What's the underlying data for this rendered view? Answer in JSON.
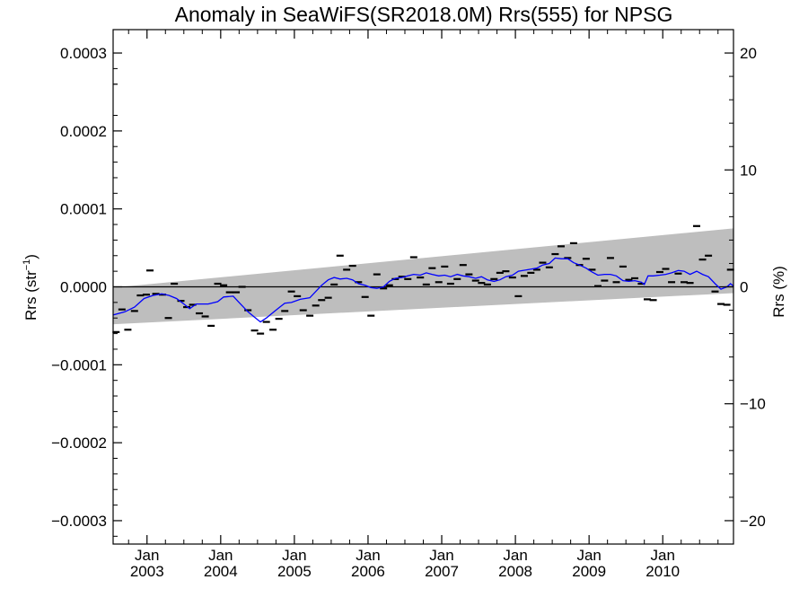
{
  "chart_data": {
    "type": "line",
    "title": "Anomaly in SeaWiFS(SR2018.0M) Rrs(555) for NPSG",
    "ylabel_main": "Rrs (str",
    "ylabel_sup": "−1",
    "ylabel_close": ")",
    "ylabel_right": "Rrs (%)",
    "x_range": [
      2002.54,
      2010.96
    ],
    "y_range": [
      -0.00033,
      0.00033
    ],
    "y2_range": [
      -22,
      22
    ],
    "x_ticks": [
      {
        "x": 2003.0,
        "month": "Jan",
        "year": "2003"
      },
      {
        "x": 2004.0,
        "month": "Jan",
        "year": "2004"
      },
      {
        "x": 2005.0,
        "month": "Jan",
        "year": "2005"
      },
      {
        "x": 2006.0,
        "month": "Jan",
        "year": "2006"
      },
      {
        "x": 2007.0,
        "month": "Jan",
        "year": "2007"
      },
      {
        "x": 2008.0,
        "month": "Jan",
        "year": "2008"
      },
      {
        "x": 2009.0,
        "month": "Jan",
        "year": "2009"
      },
      {
        "x": 2010.0,
        "month": "Jan",
        "year": "2010"
      }
    ],
    "y_ticks": [
      {
        "v": 0.0003,
        "label": "0.0003"
      },
      {
        "v": 0.0002,
        "label": "0.0002"
      },
      {
        "v": 0.0001,
        "label": "0.0001"
      },
      {
        "v": 0.0,
        "label": "0.0000"
      },
      {
        "v": -0.0001,
        "label": "−0.0001"
      },
      {
        "v": -0.0002,
        "label": "−0.0002"
      },
      {
        "v": -0.0003,
        "label": "−0.0003"
      }
    ],
    "y2_ticks": [
      {
        "v": 20,
        "label": "20"
      },
      {
        "v": 10,
        "label": "10"
      },
      {
        "v": 0,
        "label": "0"
      },
      {
        "v": -10,
        "label": "−10"
      },
      {
        "v": -20,
        "label": "−20"
      }
    ],
    "band": {
      "x": [
        2002.54,
        2010.96
      ],
      "lower": [
        -4.8e-05,
        -8e-06
      ],
      "upper": [
        -1e-06,
        7.5e-05
      ]
    },
    "monthly_points": [
      [
        2002.58,
        -5.8e-05
      ],
      [
        2002.66,
        -2.9e-05
      ],
      [
        2002.74,
        -5.5e-05
      ],
      [
        2002.83,
        -3.1e-05
      ],
      [
        2002.91,
        -1.1e-05
      ],
      [
        2002.99,
        -1e-05
      ],
      [
        2003.04,
        2.1e-05
      ],
      [
        2003.12,
        -9e-06
      ],
      [
        2003.21,
        -1e-05
      ],
      [
        2003.29,
        -4e-05
      ],
      [
        2003.37,
        4e-06
      ],
      [
        2003.46,
        -1.8e-05
      ],
      [
        2003.54,
        -2.6e-05
      ],
      [
        2003.62,
        -2.3e-05
      ],
      [
        2003.71,
        -3.4e-05
      ],
      [
        2003.79,
        -3.8e-05
      ],
      [
        2003.87,
        -5e-05
      ],
      [
        2003.96,
        4e-06
      ],
      [
        2004.04,
        2e-06
      ],
      [
        2004.12,
        -7e-06
      ],
      [
        2004.21,
        -7e-06
      ],
      [
        2004.29,
        0.0
      ],
      [
        2004.37,
        -3e-05
      ],
      [
        2004.46,
        -5.6e-05
      ],
      [
        2004.54,
        -6e-05
      ],
      [
        2004.62,
        -4.5e-05
      ],
      [
        2004.71,
        -5.5e-05
      ],
      [
        2004.79,
        -4.1e-05
      ],
      [
        2004.87,
        -3.1e-05
      ],
      [
        2004.96,
        -6e-06
      ],
      [
        2005.04,
        -1.2e-05
      ],
      [
        2005.12,
        -3e-05
      ],
      [
        2005.21,
        -3.7e-05
      ],
      [
        2005.29,
        -2.4e-05
      ],
      [
        2005.37,
        -1.7e-05
      ],
      [
        2005.46,
        -1.4e-05
      ],
      [
        2005.54,
        3e-06
      ],
      [
        2005.62,
        4e-05
      ],
      [
        2005.71,
        2.2e-05
      ],
      [
        2005.79,
        2.7e-05
      ],
      [
        2005.87,
        6e-06
      ],
      [
        2005.96,
        -1.3e-05
      ],
      [
        2006.04,
        -3.7e-05
      ],
      [
        2006.12,
        1.6e-05
      ],
      [
        2006.21,
        -2e-06
      ],
      [
        2006.29,
        2e-06
      ],
      [
        2006.37,
        1e-05
      ],
      [
        2006.46,
        1.3e-05
      ],
      [
        2006.54,
        1e-05
      ],
      [
        2006.62,
        3.8e-05
      ],
      [
        2006.71,
        1.2e-05
      ],
      [
        2006.79,
        3e-06
      ],
      [
        2006.87,
        2.4e-05
      ],
      [
        2006.96,
        6e-06
      ],
      [
        2007.04,
        2.6e-05
      ],
      [
        2007.12,
        4e-06
      ],
      [
        2007.21,
        1e-05
      ],
      [
        2007.29,
        2.8e-05
      ],
      [
        2007.37,
        1.6e-05
      ],
      [
        2007.46,
        8e-06
      ],
      [
        2007.54,
        5e-06
      ],
      [
        2007.62,
        3e-06
      ],
      [
        2007.71,
        1e-05
      ],
      [
        2007.79,
        1.8e-05
      ],
      [
        2007.87,
        2e-05
      ],
      [
        2007.96,
        1.2e-05
      ],
      [
        2008.04,
        -1.2e-05
      ],
      [
        2008.12,
        1.4e-05
      ],
      [
        2008.21,
        1.8e-05
      ],
      [
        2008.29,
        2.2e-05
      ],
      [
        2008.37,
        3.1e-05
      ],
      [
        2008.46,
        2.5e-05
      ],
      [
        2008.54,
        4.2e-05
      ],
      [
        2008.62,
        5.2e-05
      ],
      [
        2008.71,
        3.7e-05
      ],
      [
        2008.79,
        5.6e-05
      ],
      [
        2008.87,
        2.8e-05
      ],
      [
        2008.96,
        3.6e-05
      ],
      [
        2009.04,
        2.2e-05
      ],
      [
        2009.12,
        1e-06
      ],
      [
        2009.21,
        8e-06
      ],
      [
        2009.29,
        3.7e-05
      ],
      [
        2009.37,
        6e-06
      ],
      [
        2009.46,
        2.6e-05
      ],
      [
        2009.54,
        9e-06
      ],
      [
        2009.62,
        1.1e-05
      ],
      [
        2009.71,
        4e-06
      ],
      [
        2009.79,
        -1.6e-05
      ],
      [
        2009.87,
        -1.7e-05
      ],
      [
        2009.96,
        1.9e-05
      ],
      [
        2010.04,
        2.3e-05
      ],
      [
        2010.12,
        6e-06
      ],
      [
        2010.21,
        1.7e-05
      ],
      [
        2010.29,
        6e-06
      ],
      [
        2010.37,
        5e-06
      ],
      [
        2010.46,
        7.8e-05
      ],
      [
        2010.54,
        3.5e-05
      ],
      [
        2010.62,
        4e-05
      ],
      [
        2010.71,
        -6e-06
      ],
      [
        2010.79,
        -2.2e-05
      ],
      [
        2010.87,
        -2.3e-05
      ],
      [
        2010.92,
        2.2e-05
      ]
    ],
    "running_mean": [
      [
        2002.54,
        -3.6e-05
      ],
      [
        2002.7,
        -3.2e-05
      ],
      [
        2002.83,
        -2.6e-05
      ],
      [
        2002.96,
        -1.5e-05
      ],
      [
        2003.08,
        -1.1e-05
      ],
      [
        2003.2,
        -9e-06
      ],
      [
        2003.3,
        -1.1e-05
      ],
      [
        2003.4,
        -1.5e-05
      ],
      [
        2003.5,
        -2.2e-05
      ],
      [
        2003.58,
        -2.8e-05
      ],
      [
        2003.67,
        -2.2e-05
      ],
      [
        2003.83,
        -2.2e-05
      ],
      [
        2003.96,
        -1.9e-05
      ],
      [
        2004.04,
        -1.3e-05
      ],
      [
        2004.17,
        -1.2e-05
      ],
      [
        2004.25,
        -2e-05
      ],
      [
        2004.37,
        -3.2e-05
      ],
      [
        2004.46,
        -3.9e-05
      ],
      [
        2004.54,
        -4.5e-05
      ],
      [
        2004.62,
        -4e-05
      ],
      [
        2004.71,
        -3.3e-05
      ],
      [
        2004.79,
        -2.7e-05
      ],
      [
        2004.87,
        -2.1e-05
      ],
      [
        2004.96,
        -2e-05
      ],
      [
        2005.08,
        -1.6e-05
      ],
      [
        2005.21,
        -1.4e-05
      ],
      [
        2005.29,
        -6e-06
      ],
      [
        2005.37,
        2e-06
      ],
      [
        2005.46,
        9e-06
      ],
      [
        2005.54,
        1.2e-05
      ],
      [
        2005.62,
        1e-05
      ],
      [
        2005.71,
        1.1e-05
      ],
      [
        2005.79,
        9e-06
      ],
      [
        2005.87,
        4e-06
      ],
      [
        2005.96,
        2e-06
      ],
      [
        2006.04,
        -1e-06
      ],
      [
        2006.12,
        -2e-06
      ],
      [
        2006.21,
        0.0
      ],
      [
        2006.29,
        7e-06
      ],
      [
        2006.37,
        1.1e-05
      ],
      [
        2006.46,
        1.2e-05
      ],
      [
        2006.54,
        1.4e-05
      ],
      [
        2006.62,
        1.6e-05
      ],
      [
        2006.71,
        1.5e-05
      ],
      [
        2006.79,
        1.8e-05
      ],
      [
        2006.87,
        1.6e-05
      ],
      [
        2006.96,
        1.4e-05
      ],
      [
        2007.04,
        1.5e-05
      ],
      [
        2007.12,
        1.3e-05
      ],
      [
        2007.21,
        1.6e-05
      ],
      [
        2007.29,
        1.4e-05
      ],
      [
        2007.37,
        1.3e-05
      ],
      [
        2007.46,
        1.1e-05
      ],
      [
        2007.54,
        1.3e-05
      ],
      [
        2007.62,
        9e-06
      ],
      [
        2007.71,
        7e-06
      ],
      [
        2007.79,
        9e-06
      ],
      [
        2007.87,
        1.3e-05
      ],
      [
        2007.96,
        1.5e-05
      ],
      [
        2008.04,
        2e-05
      ],
      [
        2008.17,
        2.2e-05
      ],
      [
        2008.29,
        2.4e-05
      ],
      [
        2008.37,
        2.8e-05
      ],
      [
        2008.46,
        3e-05
      ],
      [
        2008.54,
        3.7e-05
      ],
      [
        2008.62,
        3.6e-05
      ],
      [
        2008.71,
        3.6e-05
      ],
      [
        2008.79,
        3.1e-05
      ],
      [
        2008.87,
        2.8e-05
      ],
      [
        2008.96,
        2.4e-05
      ],
      [
        2009.04,
        1.9e-05
      ],
      [
        2009.12,
        1.5e-05
      ],
      [
        2009.21,
        1.6e-05
      ],
      [
        2009.29,
        1.6e-05
      ],
      [
        2009.37,
        1.4e-05
      ],
      [
        2009.46,
        8e-06
      ],
      [
        2009.54,
        7e-06
      ],
      [
        2009.62,
        8e-06
      ],
      [
        2009.71,
        6e-06
      ],
      [
        2009.75,
        3e-06
      ],
      [
        2009.8,
        1.4e-05
      ],
      [
        2009.87,
        1.4e-05
      ],
      [
        2009.96,
        1.5e-05
      ],
      [
        2010.04,
        1.6e-05
      ],
      [
        2010.12,
        1.8e-05
      ],
      [
        2010.21,
        2.1e-05
      ],
      [
        2010.29,
        2e-05
      ],
      [
        2010.37,
        1.6e-05
      ],
      [
        2010.46,
        2e-05
      ],
      [
        2010.54,
        1.6e-05
      ],
      [
        2010.62,
        1.3e-05
      ],
      [
        2010.71,
        4e-06
      ],
      [
        2010.79,
        -3e-06
      ],
      [
        2010.87,
        0.0
      ],
      [
        2010.92,
        4e-06
      ],
      [
        2010.96,
        1e-06
      ]
    ],
    "grid": false,
    "colors": {
      "band": "#bebebe",
      "running_mean": "#0000ff",
      "points": "#000000",
      "zero_line": "#000000"
    }
  }
}
